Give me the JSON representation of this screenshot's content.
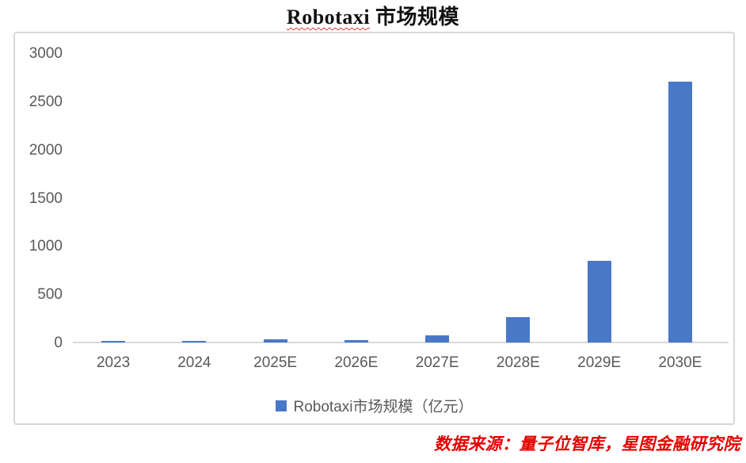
{
  "header": {
    "title_en": "Robotaxi",
    "title_cn": "市场规模",
    "title_full": "Robotaxi 市场规模"
  },
  "chart_data": {
    "type": "bar",
    "title": "Robotaxi 市场规模",
    "categories": [
      "2023",
      "2024",
      "2025E",
      "2026E",
      "2027E",
      "2028E",
      "2029E",
      "2030E"
    ],
    "values": [
      15,
      14,
      30,
      28,
      78,
      260,
      845,
      2700
    ],
    "series_name": "Robotaxi市场规模（亿元）",
    "unit": "亿元",
    "xlabel": "",
    "ylabel": "",
    "ylim": [
      0,
      3000
    ],
    "yticks": [
      0,
      500,
      1000,
      1500,
      2000,
      2500,
      3000
    ],
    "grid": false,
    "legend_position": "bottom",
    "bar_color": "#4a78c8",
    "tick_label_color": "#595959",
    "baseline_color": "#d9d9d9"
  },
  "legend": {
    "label": "Robotaxi市场规模（亿元）",
    "swatch_color": "#4a78c8"
  },
  "footer": {
    "source_note": "数据来源：量子位智库，星图金融研究院",
    "source_color": "#e60000"
  }
}
